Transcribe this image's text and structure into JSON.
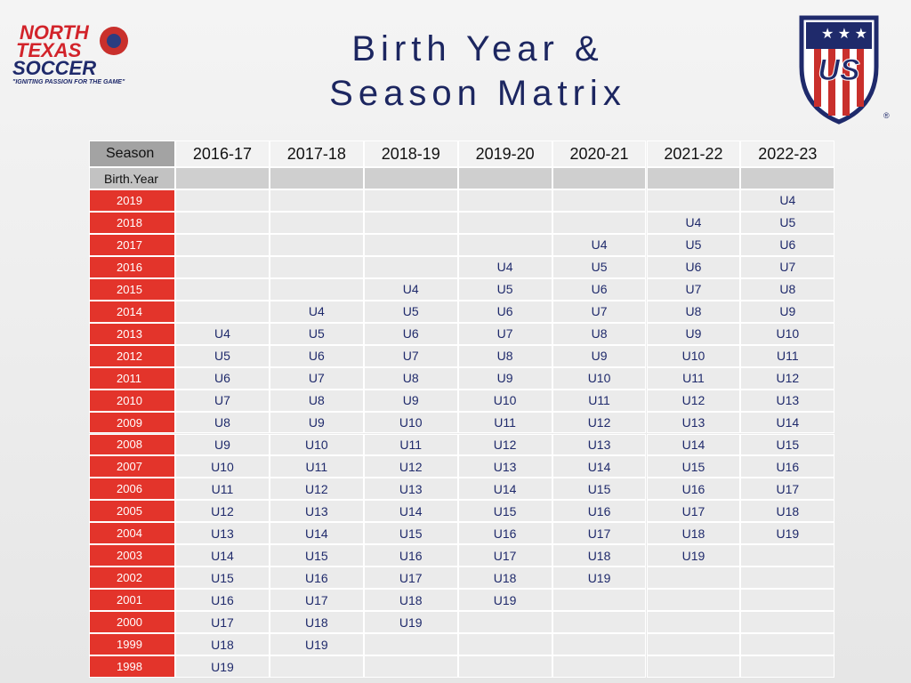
{
  "header": {
    "title_lines": [
      "Birth Year &",
      "Season Matrix"
    ],
    "left_logo": {
      "lines": [
        "NORTH",
        "TEXAS",
        "SOCCER"
      ],
      "tagline": "\"IGNITING PASSION FOR THE GAME\""
    },
    "right_logo": {
      "text": "US",
      "mark": "®"
    }
  },
  "table": {
    "corner": "Season",
    "subheader": "Birth.Year",
    "columns": [
      "2016-17",
      "2017-18",
      "2018-19",
      "2019-20",
      "2020-21",
      "2021-22",
      "2022-23"
    ],
    "rows": [
      {
        "year": "2019",
        "cells": [
          null,
          null,
          null,
          null,
          null,
          null,
          "U4"
        ]
      },
      {
        "year": "2018",
        "cells": [
          null,
          null,
          null,
          null,
          null,
          "U4",
          "U5"
        ]
      },
      {
        "year": "2017",
        "cells": [
          null,
          null,
          null,
          null,
          "U4",
          "U5",
          "U6"
        ]
      },
      {
        "year": "2016",
        "cells": [
          null,
          null,
          null,
          "U4",
          "U5",
          "U6",
          "U7"
        ]
      },
      {
        "year": "2015",
        "cells": [
          null,
          null,
          "U4",
          "U5",
          "U6",
          "U7",
          "U8"
        ]
      },
      {
        "year": "2014",
        "cells": [
          null,
          "U4",
          "U5",
          "U6",
          "U7",
          "U8",
          "U9"
        ]
      },
      {
        "year": "2013",
        "cells": [
          "U4",
          "U5",
          "U6",
          "U7",
          "U8",
          "U9",
          "U10"
        ]
      },
      {
        "year": "2012",
        "cells": [
          "U5",
          "U6",
          "U7",
          "U8",
          "U9",
          "U10",
          "U11"
        ]
      },
      {
        "year": "2011",
        "cells": [
          "U6",
          "U7",
          "U8",
          "U9",
          "U10",
          "U11",
          "U12"
        ]
      },
      {
        "year": "2010",
        "cells": [
          "U7",
          "U8",
          "U9",
          "U10",
          "U11",
          "U12",
          "U13"
        ]
      },
      {
        "year": "2009",
        "cells": [
          "U8",
          "U9",
          "U10",
          "U11",
          "U12",
          "U13",
          "U14"
        ]
      },
      {
        "year": "2008",
        "cells": [
          "U9",
          "U10",
          "U11",
          "U12",
          "U13",
          "U14",
          "U15"
        ]
      },
      {
        "year": "2007",
        "cells": [
          "U10",
          "U11",
          "U12",
          "U13",
          "U14",
          "U15",
          "U16"
        ]
      },
      {
        "year": "2006",
        "cells": [
          "U11",
          "U12",
          "U13",
          "U14",
          "U15",
          "U16",
          "U17"
        ]
      },
      {
        "year": "2005",
        "cells": [
          "U12",
          "U13",
          "U14",
          "U15",
          "U16",
          "U17",
          "U18"
        ]
      },
      {
        "year": "2004",
        "cells": [
          "U13",
          "U14",
          "U15",
          "U16",
          "U17",
          "U18",
          "U19"
        ]
      },
      {
        "year": "2003",
        "cells": [
          "U14",
          "U15",
          "U16",
          "U17",
          "U18",
          "U19",
          null
        ]
      },
      {
        "year": "2002",
        "cells": [
          "U15",
          "U16",
          "U17",
          "U18",
          "U19",
          null,
          null
        ]
      },
      {
        "year": "2001",
        "cells": [
          "U16",
          "U17",
          "U18",
          "U19",
          null,
          null,
          null
        ]
      },
      {
        "year": "2000",
        "cells": [
          "U17",
          "U18",
          "U19",
          null,
          null,
          null,
          null
        ]
      },
      {
        "year": "1999",
        "cells": [
          "U18",
          "U19",
          null,
          null,
          null,
          null,
          null
        ]
      },
      {
        "year": "1998",
        "cells": [
          "U19",
          null,
          null,
          null,
          null,
          null,
          null
        ]
      }
    ]
  }
}
